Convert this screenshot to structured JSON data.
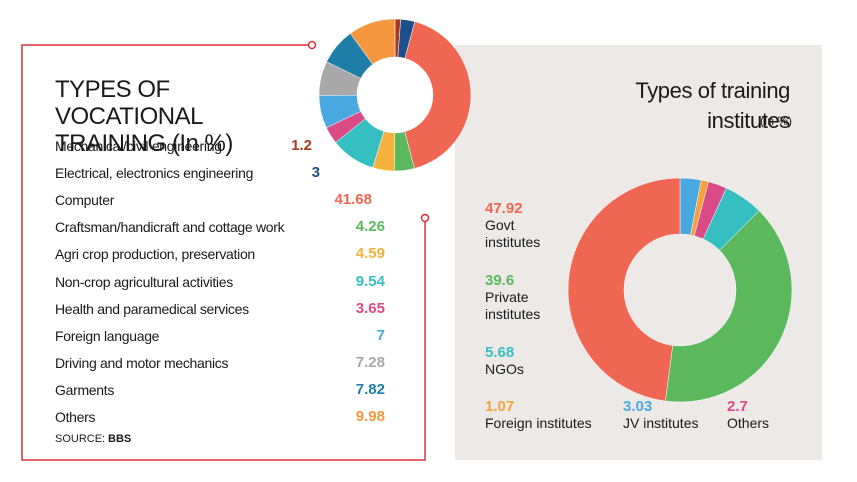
{
  "chart_data": [
    {
      "type": "pie",
      "title": "TYPES OF VOCATIONAL TRAINING (In %)",
      "categories": [
        "Mechanical/civil engineering",
        "Electrical, electronics engineering",
        "Computer",
        "Craftsman/handicraft and cottage work",
        "Agri crop production, preservation",
        "Non-crop agricultural activities",
        "Health and paramedical services",
        "Foreign language",
        "Driving and motor mechanics",
        "Garments",
        "Others"
      ],
      "values": [
        1.2,
        3,
        41.68,
        4.26,
        4.59,
        9.54,
        3.65,
        7,
        7.28,
        7.82,
        9.98
      ],
      "colors": [
        "#a8391f",
        "#1d4f8c",
        "#ef6652",
        "#5cb85c",
        "#f5b23c",
        "#35bfc0",
        "#d94a86",
        "#4aa8e0",
        "#a8a8a8",
        "#1f7ea8",
        "#f5973e"
      ],
      "source_label": "SOURCE:",
      "source": "BBS"
    },
    {
      "type": "pie",
      "title": "Types of training institutes",
      "unit": "(In %)",
      "categories": [
        "Govt institutes",
        "Private institutes",
        "NGOs",
        "Foreign institutes",
        "JV institutes",
        "Others"
      ],
      "values": [
        47.92,
        39.6,
        5.68,
        1.07,
        3.03,
        2.7
      ],
      "colors": [
        "#ef6652",
        "#5cb85c",
        "#35bfc0",
        "#f5a23c",
        "#4aa8e0",
        "#d94a86"
      ]
    }
  ]
}
